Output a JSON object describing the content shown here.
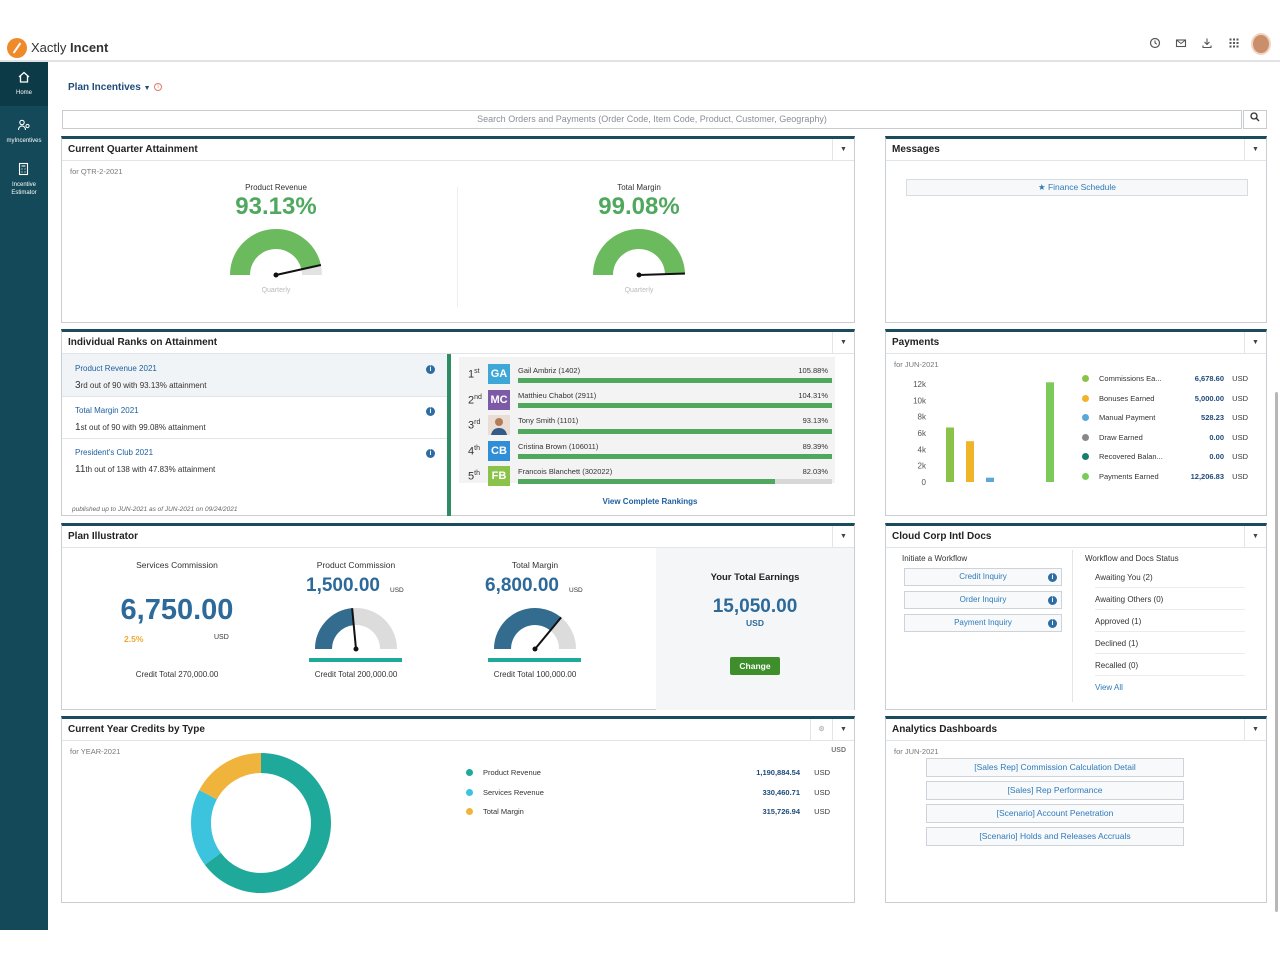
{
  "app": {
    "brand_light": "Xactly",
    "brand_bold": "Incent"
  },
  "top_icons": [
    "history-icon",
    "mail-icon",
    "download-icon",
    "apps-grid-icon"
  ],
  "sidebar": {
    "items": [
      {
        "label": "Home",
        "icon": "home-icon"
      },
      {
        "label": "myIncentives",
        "icon": "people-icon"
      },
      {
        "label": "Incentive Estimator",
        "icon": "calculator-icon"
      }
    ]
  },
  "plan_menu": {
    "label": "Plan Incentives",
    "info": "i"
  },
  "search": {
    "placeholder": "Search Orders and Payments (Order Code, Item Code, Product, Customer, Geography)"
  },
  "cqa": {
    "title": "Current Quarter Attainment",
    "period": "for QTR-2-2021",
    "gauges": [
      {
        "label": "Product Revenue",
        "value": "93.13%",
        "foot": "Quarterly",
        "fraction": 0.93
      },
      {
        "label": "Total Margin",
        "value": "99.08%",
        "foot": "Quarterly",
        "fraction": 0.99
      }
    ]
  },
  "messages": {
    "title": "Messages",
    "item": "Finance Schedule"
  },
  "ranks": {
    "title": "Individual Ranks on Attainment",
    "plans": [
      {
        "title": "Product Revenue 2021",
        "ord": "3",
        "suffix": "rd",
        "detail": " out of 90 with 93.13% attainment"
      },
      {
        "title": "Total Margin 2021",
        "ord": "1",
        "suffix": "st",
        "detail": " out of 90 with 99.08% attainment"
      },
      {
        "title": "President's Club 2021",
        "ord": "11",
        "suffix": "th",
        "detail": " out of 138 with 47.83% attainment"
      }
    ],
    "published": "published up to JUN-2021 as of JUN-2021 on 09/24/2021",
    "leaders": [
      {
        "pos": "1",
        "suf": "st",
        "initials": "GA",
        "color": "#3fa7d8",
        "name": "Gail Ambriz (1402)",
        "pct": "105.88%",
        "fill": 1.0
      },
      {
        "pos": "2",
        "suf": "nd",
        "initials": "MC",
        "color": "#7d5aa6",
        "name": "Matthieu Chabot (2911)",
        "pct": "104.31%",
        "fill": 1.0
      },
      {
        "pos": "3",
        "suf": "rd",
        "initials": "",
        "color": "#b27b5a",
        "name": "Tony Smith (1101)",
        "pct": "93.13%",
        "fill": 1.0
      },
      {
        "pos": "4",
        "suf": "th",
        "initials": "CB",
        "color": "#2f8ed6",
        "name": "Cristina Brown (106011)",
        "pct": "89.39%",
        "fill": 1.0
      },
      {
        "pos": "5",
        "suf": "th",
        "initials": "FB",
        "color": "#8bc34a",
        "name": "Francois Blanchett (302022)",
        "pct": "82.03%",
        "fill": 0.82
      }
    ],
    "view_all": "View Complete Rankings"
  },
  "payments": {
    "title": "Payments",
    "period": "for JUN-2021",
    "yticks": [
      "12k",
      "10k",
      "8k",
      "6k",
      "4k",
      "2k",
      "0"
    ],
    "rows": [
      {
        "label": "Commissions Ea...",
        "value": "6,678.60",
        "cur": "USD",
        "color": "#8bc34a"
      },
      {
        "label": "Bonuses Earned",
        "value": "5,000.00",
        "cur": "USD",
        "color": "#f0b429"
      },
      {
        "label": "Manual Payment",
        "value": "528.23",
        "cur": "USD",
        "color": "#5aa7d8"
      },
      {
        "label": "Draw Earned",
        "value": "0.00",
        "cur": "USD",
        "color": "#888888"
      },
      {
        "label": "Recovered Balan...",
        "value": "0.00",
        "cur": "USD",
        "color": "#1a7e6e"
      },
      {
        "label": "Payments Earned",
        "value": "12,206.83",
        "cur": "USD",
        "color": "#7ccb5a"
      }
    ]
  },
  "chart_data": {
    "type": "bar",
    "title": "",
    "ylim": [
      0,
      12000
    ],
    "series": [
      {
        "values": [
          6678.6,
          5000.0,
          528.23,
          0,
          0,
          12206.83
        ],
        "colors": [
          "#8bc34a",
          "#f0b429",
          "#5aa7d8",
          "#888888",
          "#1a7e6e",
          "#7ccb5a"
        ]
      }
    ],
    "categories": [
      "Commissions Ea...",
      "Bonuses Earned",
      "Manual Payment",
      "Draw Earned",
      "Recovered Balan...",
      "Payments Earned"
    ]
  },
  "illustrator": {
    "title": "Plan Illustrator",
    "services": {
      "label": "Services Commission",
      "value": "6,750.00",
      "rate": "2.5%",
      "cur": "USD",
      "credit": "Credit Total 270,000.00"
    },
    "product": {
      "label": "Product Commission",
      "value": "1,500.00",
      "cur": "USD",
      "credit": "Credit Total 200,000.00",
      "fraction": 0.47
    },
    "margin": {
      "label": "Total Margin",
      "value": "6,800.00",
      "cur": "USD",
      "credit": "Credit Total 100,000.00",
      "fraction": 0.72
    },
    "total": {
      "label": "Your Total Earnings",
      "value": "15,050.00",
      "cur": "USD",
      "button": "Change"
    }
  },
  "docs": {
    "title": "Cloud Corp Intl Docs",
    "initiate": "Initiate a Workflow",
    "workflows": [
      "Credit Inquiry",
      "Order Inquiry",
      "Payment Inquiry"
    ],
    "status_title": "Workflow and Docs Status",
    "statuses": [
      "Awaiting You (2)",
      "Awaiting Others (0)",
      "Approved (1)",
      "Declined (1)",
      "Recalled (0)"
    ],
    "view_all": "View All"
  },
  "credits": {
    "title": "Current Year Credits by Type",
    "period": "for YEAR-2021",
    "unit": "USD",
    "rows": [
      {
        "label": "Product Revenue",
        "value": "1,190,884.54",
        "cur": "USD",
        "color": "#1fa99a",
        "num": 1190884.54
      },
      {
        "label": "Services Revenue",
        "value": "330,460.71",
        "cur": "USD",
        "color": "#3cc4df",
        "num": 330460.71
      },
      {
        "label": "Total Margin",
        "value": "315,726.94",
        "cur": "USD",
        "color": "#f0b43c",
        "num": 315726.94
      }
    ]
  },
  "analytics": {
    "title": "Analytics Dashboards",
    "period": "for JUN-2021",
    "links": [
      "[Sales Rep] Commission Calculation Detail",
      "[Sales] Rep Performance",
      "[Scenario] Account Penetration",
      "[Scenario] Holds and Releases Accruals"
    ]
  }
}
